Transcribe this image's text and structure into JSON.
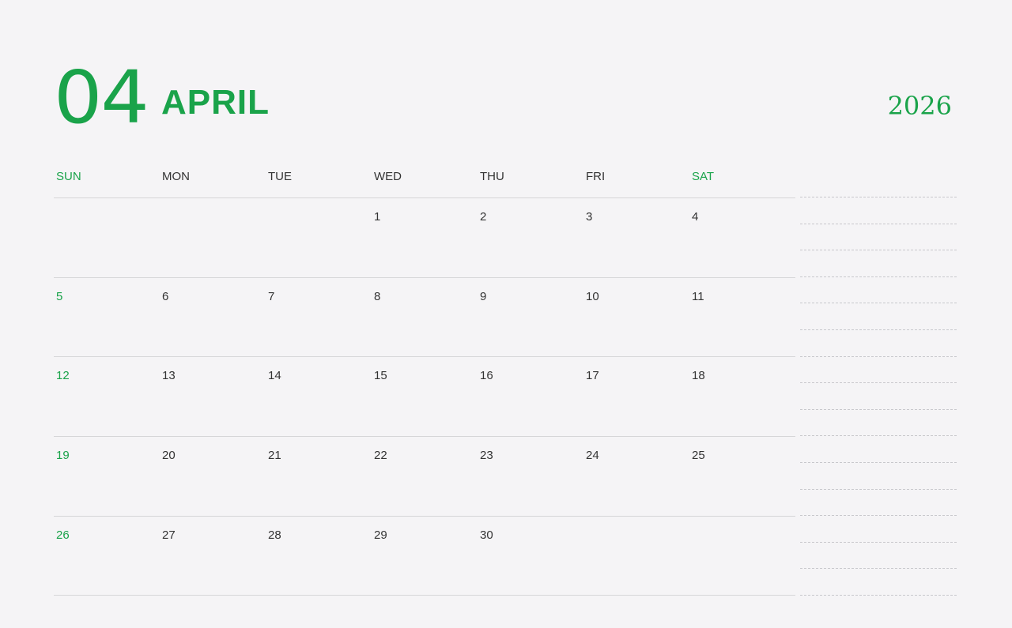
{
  "header": {
    "month_number": "04",
    "month_name": "APRIL",
    "year": "2026"
  },
  "weekdays": [
    "SUN",
    "MON",
    "TUE",
    "WED",
    "THU",
    "FRI",
    "SAT"
  ],
  "weeks": [
    [
      "",
      "",
      "",
      "1",
      "2",
      "3",
      "4"
    ],
    [
      "5",
      "6",
      "7",
      "8",
      "9",
      "10",
      "11"
    ],
    [
      "12",
      "13",
      "14",
      "15",
      "16",
      "17",
      "18"
    ],
    [
      "19",
      "20",
      "21",
      "22",
      "23",
      "24",
      "25"
    ],
    [
      "26",
      "27",
      "28",
      "29",
      "30",
      "",
      ""
    ]
  ],
  "colors": {
    "accent": "#1aa34a",
    "text": "#333333",
    "background": "#f5f4f6",
    "lines": "#d6d6d8"
  },
  "notes_lines": 16
}
